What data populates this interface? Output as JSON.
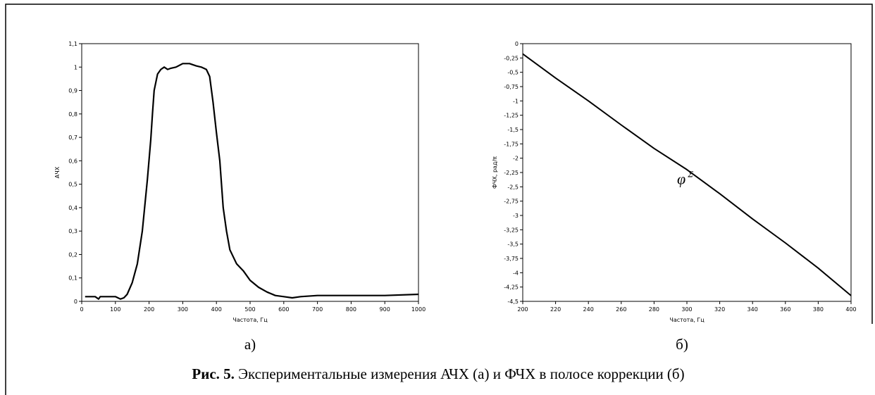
{
  "chart_data": [
    {
      "type": "line",
      "panel_label": "а)",
      "xlabel": "Частота, Гц",
      "ylabel": "АЧХ",
      "xlim": [
        0,
        1000
      ],
      "ylim": [
        0,
        1.1
      ],
      "xticks": [
        "0",
        "100",
        "200",
        "300",
        "400",
        "500",
        "600",
        "700",
        "800",
        "900",
        "1000"
      ],
      "yticks": [
        "0",
        "0,1",
        "0,2",
        "0,3",
        "0,4",
        "0,5",
        "0,6",
        "0,7",
        "0,8",
        "0,9",
        "1",
        "1,1"
      ],
      "grid": false,
      "series": [
        {
          "x": [
            10,
            40,
            50,
            55,
            60,
            80,
            100,
            115,
            125,
            135,
            150,
            165,
            180,
            195,
            205,
            210,
            215,
            225,
            235,
            245,
            255,
            265,
            280,
            300,
            320,
            340,
            355,
            370,
            380,
            390,
            400,
            410,
            420,
            430,
            440,
            450,
            460,
            480,
            500,
            525,
            550,
            575,
            600,
            625,
            650,
            700,
            800,
            900,
            1000
          ],
          "y": [
            0.02,
            0.02,
            0.01,
            0.02,
            0.02,
            0.02,
            0.02,
            0.01,
            0.015,
            0.03,
            0.08,
            0.16,
            0.3,
            0.52,
            0.69,
            0.8,
            0.9,
            0.97,
            0.99,
            1.0,
            0.99,
            0.995,
            1.0,
            1.015,
            1.015,
            1.005,
            1.0,
            0.99,
            0.96,
            0.85,
            0.72,
            0.6,
            0.4,
            0.3,
            0.22,
            0.19,
            0.16,
            0.13,
            0.09,
            0.06,
            0.04,
            0.025,
            0.02,
            0.015,
            0.02,
            0.025,
            0.025,
            0.025,
            0.03
          ]
        }
      ]
    },
    {
      "type": "line",
      "panel_label": "б)",
      "xlabel": "Частота, Гц",
      "ylabel": "ФЧХ, рад/π",
      "xlim": [
        200,
        400
      ],
      "ylim": [
        -4.5,
        0
      ],
      "xticks": [
        "200",
        "220",
        "240",
        "260",
        "280",
        "300",
        "320",
        "340",
        "360",
        "380",
        "400"
      ],
      "yticks": [
        "0",
        "-0,25",
        "-0,5",
        "-0,75",
        "-1",
        "-1,25",
        "-1,5",
        "-1,75",
        "-2",
        "-2,25",
        "-2,5",
        "-2,75",
        "-3",
        "-3,25",
        "-3,5",
        "-3,75",
        "-4",
        "-4,25",
        "-4,5"
      ],
      "grid": false,
      "annotation": {
        "text": "φ",
        "superscript": "Σ",
        "x": 294,
        "y": -2.45
      },
      "series": [
        {
          "x": [
            200,
            220,
            240,
            260,
            280,
            300,
            320,
            340,
            360,
            380,
            400
          ],
          "y": [
            -0.18,
            -0.6,
            -1.0,
            -1.42,
            -1.83,
            -2.2,
            -2.62,
            -3.06,
            -3.48,
            -3.92,
            -4.4
          ]
        }
      ]
    }
  ],
  "caption": {
    "bold": "Рис. 5.",
    "text": " Экспериментальные измерения АЧХ (а) и ФЧХ в полосе коррекции (б)"
  }
}
